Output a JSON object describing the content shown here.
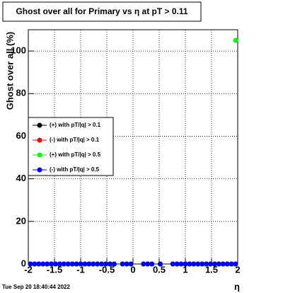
{
  "chart_data": {
    "type": "scatter",
    "title": "Ghost over all for Primary vs η at pT > 0.11",
    "x_label": "η",
    "y_label": "Ghost over all (%)",
    "timestamp": "Tue Sep 20 18:40:44 2022",
    "xlim": [
      -2,
      2
    ],
    "ylim": [
      0,
      110
    ],
    "xticks": [
      -2,
      -1.5,
      -1,
      -0.5,
      0,
      0.5,
      1,
      1.5,
      2
    ],
    "yticks": [
      0,
      20,
      40,
      60,
      80,
      100
    ],
    "grid": true,
    "legend": "left",
    "x": [
      -1.96,
      -1.88,
      -1.8,
      -1.72,
      -1.64,
      -1.56,
      -1.48,
      -1.4,
      -1.32,
      -1.24,
      -1.16,
      -1.08,
      -1,
      -0.92,
      -0.84,
      -0.76,
      -0.68,
      -0.6,
      -0.52,
      -0.44,
      -0.36,
      -0.28,
      -0.2,
      -0.12,
      -0.04,
      0.04,
      0.12,
      0.2,
      0.28,
      0.36,
      0.44,
      0.52,
      0.6,
      0.68,
      0.76,
      0.84,
      0.92,
      1,
      1.08,
      1.16,
      1.24,
      1.32,
      1.4,
      1.48,
      1.56,
      1.64,
      1.72,
      1.8,
      1.88,
      1.96
    ],
    "series": [
      {
        "name": "(+) with pT/|q| > 0.1",
        "color": "#000000",
        "values": [
          0,
          0,
          0,
          0,
          0,
          0,
          0,
          0,
          0,
          0,
          0,
          0,
          0,
          0,
          0,
          0,
          0,
          0,
          0,
          0,
          0,
          null,
          0,
          0,
          0,
          null,
          null,
          0,
          0,
          0,
          null,
          0,
          null,
          null,
          0,
          0,
          0,
          0,
          0,
          0,
          0,
          0,
          0,
          0,
          0,
          0,
          0,
          0,
          0,
          0
        ]
      },
      {
        "name": "(-) with pT/|q| > 0.1",
        "color": "#ff0000",
        "values": [
          0,
          0,
          0,
          0,
          0,
          0,
          0,
          0,
          0,
          0,
          0,
          0,
          0,
          0,
          0,
          0,
          0,
          0,
          0,
          0,
          0,
          null,
          0,
          0,
          0,
          null,
          null,
          0,
          0,
          0,
          null,
          0,
          null,
          null,
          0,
          0,
          0,
          0,
          0,
          0,
          0,
          0,
          0,
          0,
          0,
          0,
          0,
          0,
          0,
          0
        ]
      },
      {
        "name": "(+) with pT/|q| > 0.5",
        "color": "#00ff00",
        "values": [
          0,
          0,
          0,
          0,
          0,
          0,
          0,
          0,
          0,
          0,
          0,
          0,
          0,
          0,
          0,
          0,
          0,
          0,
          0,
          0,
          0,
          null,
          0,
          0,
          0,
          null,
          null,
          0,
          0,
          0,
          null,
          0,
          null,
          null,
          0,
          0,
          0,
          0,
          0,
          0,
          0,
          0,
          0,
          0,
          0,
          0,
          0,
          0,
          0,
          105
        ]
      },
      {
        "name": "(-) with pT/|q| > 0.5",
        "color": "#0000ff",
        "values": [
          0,
          0,
          0,
          0,
          0,
          0,
          0,
          0,
          0,
          0,
          0,
          0,
          0,
          0,
          0,
          0,
          0,
          0,
          0,
          0,
          0,
          null,
          0,
          0,
          0,
          null,
          null,
          0,
          0,
          0,
          null,
          0,
          null,
          null,
          0,
          0,
          0,
          0,
          0,
          0,
          0,
          0,
          0,
          0,
          0,
          0,
          0,
          0,
          0,
          0
        ]
      }
    ]
  }
}
